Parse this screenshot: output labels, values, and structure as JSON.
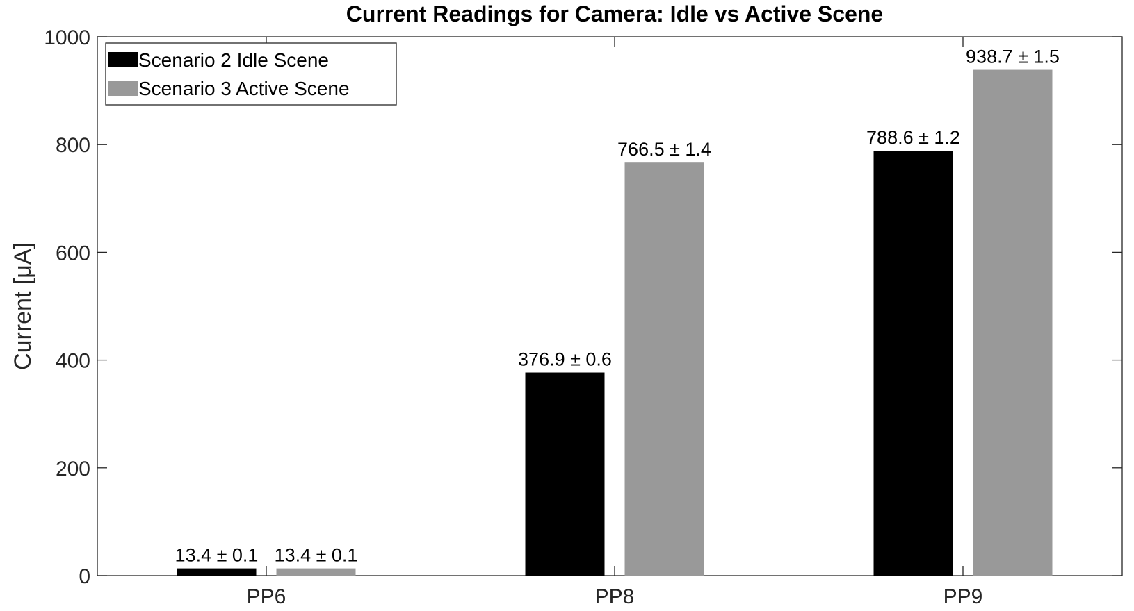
{
  "chart_data": {
    "type": "bar",
    "title": "Current Readings for Camera: Idle vs Active Scene",
    "xlabel": "",
    "ylabel": "Current [μA]",
    "categories": [
      "PP6",
      "PP8",
      "PP9"
    ],
    "ylim": [
      0,
      1000
    ],
    "yticks": [
      0,
      200,
      400,
      600,
      800,
      1000
    ],
    "grid": false,
    "legend_position": "top-left",
    "series": [
      {
        "name": "Scenario 2 Idle Scene",
        "color": "#000000",
        "values": [
          13.4,
          376.9,
          788.6
        ],
        "errors": [
          0.1,
          0.6,
          1.2
        ],
        "labels": [
          "13.4 ± 0.1",
          "376.9 ± 0.6",
          "788.6 ± 1.2"
        ]
      },
      {
        "name": "Scenario 3 Active Scene",
        "color": "#999999",
        "values": [
          13.4,
          766.5,
          938.7
        ],
        "errors": [
          0.1,
          1.4,
          1.5
        ],
        "labels": [
          "13.4 ± 0.1",
          "766.5 ± 1.4",
          "938.7 ± 1.5"
        ]
      }
    ]
  }
}
